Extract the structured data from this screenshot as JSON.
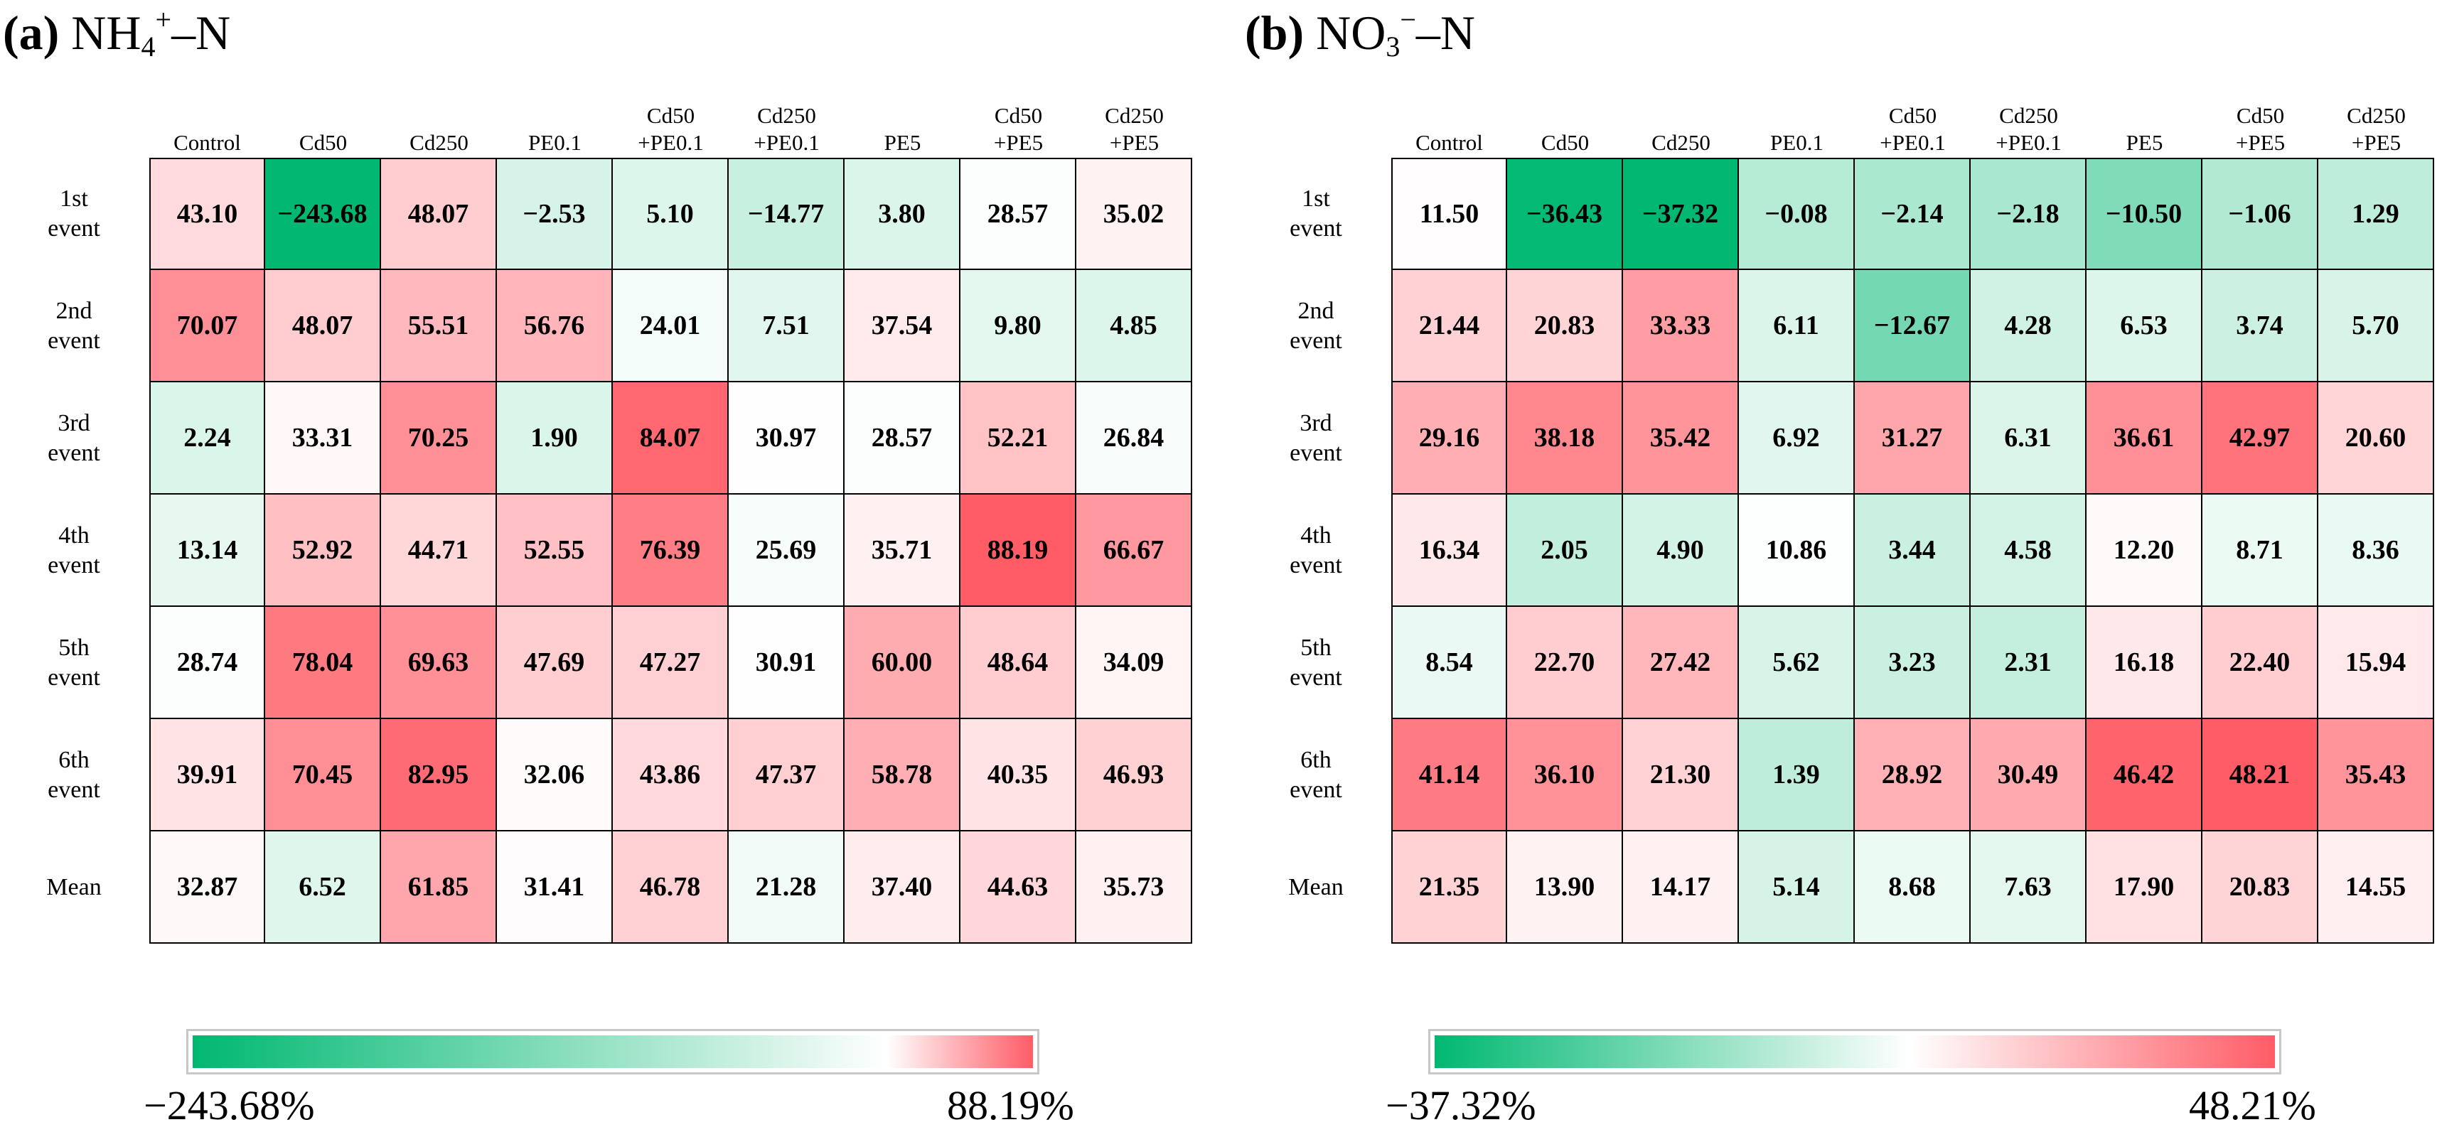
{
  "chart_data": [
    {
      "type": "heatmap",
      "panel_label": "(a)",
      "title": "NH4+–N",
      "title_parts": {
        "base": "NH",
        "sub": "4",
        "sup": "+",
        "tail": "–N"
      },
      "columns": [
        "Control",
        "Cd50",
        "Cd250",
        "PE0.1",
        "Cd50\n+PE0.1",
        "Cd250\n+PE0.1",
        "PE5",
        "Cd50\n+PE5",
        "Cd250\n+PE5"
      ],
      "rows": [
        "1st\nevent",
        "2nd\nevent",
        "3rd\nevent",
        "4th\nevent",
        "5th\nevent",
        "6th\nevent",
        "Mean"
      ],
      "values": [
        [
          "43.10",
          "−243.68",
          "48.07",
          "−2.53",
          "5.10",
          "−14.77",
          "3.80",
          "28.57",
          "35.02"
        ],
        [
          "70.07",
          "48.07",
          "55.51",
          "56.76",
          "24.01",
          "7.51",
          "37.54",
          "9.80",
          "4.85"
        ],
        [
          "2.24",
          "33.31",
          "70.25",
          "1.90",
          "84.07",
          "30.97",
          "28.57",
          "52.21",
          "26.84"
        ],
        [
          "13.14",
          "52.92",
          "44.71",
          "52.55",
          "76.39",
          "25.69",
          "35.71",
          "88.19",
          "66.67"
        ],
        [
          "28.74",
          "78.04",
          "69.63",
          "47.69",
          "47.27",
          "30.91",
          "60.00",
          "48.64",
          "34.09"
        ],
        [
          "39.91",
          "70.45",
          "82.95",
          "32.06",
          "43.86",
          "47.37",
          "58.78",
          "40.35",
          "46.93"
        ],
        [
          "32.87",
          "6.52",
          "61.85",
          "31.41",
          "46.78",
          "21.28",
          "37.40",
          "44.63",
          "35.73"
        ]
      ],
      "colorbar": {
        "min": -243.68,
        "max": 88.19,
        "min_label": "−243.68%",
        "max_label": "88.19%",
        "midpoint": 30.5
      }
    },
    {
      "type": "heatmap",
      "panel_label": "(b)",
      "title": "NO3−–N",
      "title_parts": {
        "base": "NO",
        "sub": "3",
        "sup": "−",
        "tail": "–N"
      },
      "columns": [
        "Control",
        "Cd50",
        "Cd250",
        "PE0.1",
        "Cd50\n+PE0.1",
        "Cd250\n+PE0.1",
        "PE5",
        "Cd50\n+PE5",
        "Cd250\n+PE5"
      ],
      "rows": [
        "1st\nevent",
        "2nd\nevent",
        "3rd\nevent",
        "4th\nevent",
        "5th\nevent",
        "6th\nevent",
        "Mean"
      ],
      "values": [
        [
          "11.50",
          "−36.43",
          "−37.32",
          "−0.08",
          "−2.14",
          "−2.18",
          "−10.50",
          "−1.06",
          "1.29"
        ],
        [
          "21.44",
          "20.83",
          "33.33",
          "6.11",
          "−12.67",
          "4.28",
          "6.53",
          "3.74",
          "5.70"
        ],
        [
          "29.16",
          "38.18",
          "35.42",
          "6.92",
          "31.27",
          "6.31",
          "36.61",
          "42.97",
          "20.60"
        ],
        [
          "16.34",
          "2.05",
          "4.90",
          "10.86",
          "3.44",
          "4.58",
          "12.20",
          "8.71",
          "8.36"
        ],
        [
          "8.54",
          "22.70",
          "27.42",
          "5.62",
          "3.23",
          "2.31",
          "16.18",
          "22.40",
          "15.94"
        ],
        [
          "41.14",
          "36.10",
          "21.30",
          "1.39",
          "28.92",
          "30.49",
          "46.42",
          "48.21",
          "35.43"
        ],
        [
          "21.35",
          "13.90",
          "14.17",
          "5.14",
          "8.68",
          "7.63",
          "17.90",
          "20.83",
          "14.55"
        ]
      ],
      "colorbar": {
        "min": -37.32,
        "max": 48.21,
        "min_label": "−37.32%",
        "max_label": "48.21%",
        "midpoint": 11
      }
    }
  ],
  "colors": {
    "low": "#00b871",
    "mid": "#ffffff",
    "high": "#ff5c66",
    "border": "#000000"
  }
}
